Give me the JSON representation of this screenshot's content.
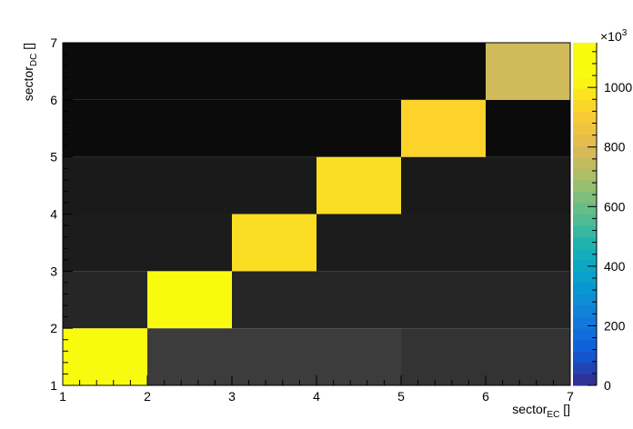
{
  "chart_data": {
    "type": "heatmap",
    "x_label": {
      "base": "sector",
      "sub": "EC",
      "suffix": " []"
    },
    "y_label": {
      "base": "sector",
      "sub": "DC",
      "suffix": " []"
    },
    "x_ticks": [
      "1",
      "2",
      "3",
      "4",
      "5",
      "6",
      "7"
    ],
    "y_ticks": [
      "1",
      "2",
      "3",
      "4",
      "5",
      "6",
      "7"
    ],
    "x_edges": [
      1,
      2,
      3,
      4,
      5,
      6,
      7
    ],
    "y_edges": [
      1,
      2,
      3,
      4,
      5,
      6,
      7
    ],
    "values_note": "values in units of 10^3, rows indexed by sector_DC bin (1..6), columns by sector_EC bin (1..6)",
    "z": [
      [
        1110,
        15,
        15,
        15,
        12,
        12
      ],
      [
        10,
        1110,
        10,
        8,
        8,
        8
      ],
      [
        5,
        6,
        960,
        5,
        5,
        5
      ],
      [
        1,
        1,
        1,
        960,
        1,
        1
      ],
      [
        0.5,
        0.5,
        0.5,
        0.5,
        930,
        0.5
      ],
      [
        0.5,
        0.5,
        0.5,
        0.5,
        0.5,
        770
      ]
    ],
    "zlim": [
      0,
      1150
    ],
    "colorbar": {
      "multiplier": {
        "base": "×10",
        "exp": "3"
      },
      "ticks": [
        "0",
        "200",
        "400",
        "600",
        "800",
        "1000"
      ],
      "tick_values": [
        0,
        200,
        400,
        600,
        800,
        1000
      ]
    },
    "colormap": "parula",
    "log_scale": false,
    "grid": false
  }
}
